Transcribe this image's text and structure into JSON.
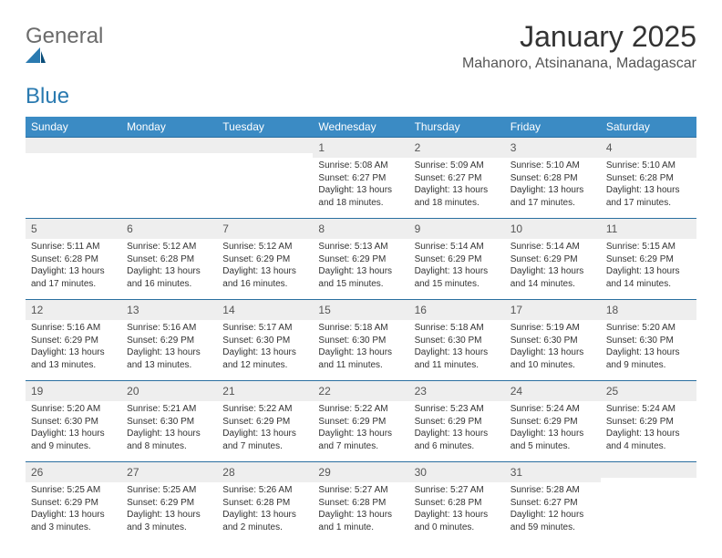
{
  "logo": {
    "word1": "General",
    "word2": "Blue"
  },
  "title": "January 2025",
  "location": "Mahanoro, Atsinanana, Madagascar",
  "header_bg": "#3b8bc4",
  "rule_color": "#2a6fa0",
  "stripe_bg": "#eeeeee",
  "days_of_week": [
    "Sunday",
    "Monday",
    "Tuesday",
    "Wednesday",
    "Thursday",
    "Friday",
    "Saturday"
  ],
  "weeks": [
    [
      null,
      null,
      null,
      {
        "n": "1",
        "sunrise": "5:08 AM",
        "sunset": "6:27 PM",
        "daylight": "13 hours and 18 minutes."
      },
      {
        "n": "2",
        "sunrise": "5:09 AM",
        "sunset": "6:27 PM",
        "daylight": "13 hours and 18 minutes."
      },
      {
        "n": "3",
        "sunrise": "5:10 AM",
        "sunset": "6:28 PM",
        "daylight": "13 hours and 17 minutes."
      },
      {
        "n": "4",
        "sunrise": "5:10 AM",
        "sunset": "6:28 PM",
        "daylight": "13 hours and 17 minutes."
      }
    ],
    [
      {
        "n": "5",
        "sunrise": "5:11 AM",
        "sunset": "6:28 PM",
        "daylight": "13 hours and 17 minutes."
      },
      {
        "n": "6",
        "sunrise": "5:12 AM",
        "sunset": "6:28 PM",
        "daylight": "13 hours and 16 minutes."
      },
      {
        "n": "7",
        "sunrise": "5:12 AM",
        "sunset": "6:29 PM",
        "daylight": "13 hours and 16 minutes."
      },
      {
        "n": "8",
        "sunrise": "5:13 AM",
        "sunset": "6:29 PM",
        "daylight": "13 hours and 15 minutes."
      },
      {
        "n": "9",
        "sunrise": "5:14 AM",
        "sunset": "6:29 PM",
        "daylight": "13 hours and 15 minutes."
      },
      {
        "n": "10",
        "sunrise": "5:14 AM",
        "sunset": "6:29 PM",
        "daylight": "13 hours and 14 minutes."
      },
      {
        "n": "11",
        "sunrise": "5:15 AM",
        "sunset": "6:29 PM",
        "daylight": "13 hours and 14 minutes."
      }
    ],
    [
      {
        "n": "12",
        "sunrise": "5:16 AM",
        "sunset": "6:29 PM",
        "daylight": "13 hours and 13 minutes."
      },
      {
        "n": "13",
        "sunrise": "5:16 AM",
        "sunset": "6:29 PM",
        "daylight": "13 hours and 13 minutes."
      },
      {
        "n": "14",
        "sunrise": "5:17 AM",
        "sunset": "6:30 PM",
        "daylight": "13 hours and 12 minutes."
      },
      {
        "n": "15",
        "sunrise": "5:18 AM",
        "sunset": "6:30 PM",
        "daylight": "13 hours and 11 minutes."
      },
      {
        "n": "16",
        "sunrise": "5:18 AM",
        "sunset": "6:30 PM",
        "daylight": "13 hours and 11 minutes."
      },
      {
        "n": "17",
        "sunrise": "5:19 AM",
        "sunset": "6:30 PM",
        "daylight": "13 hours and 10 minutes."
      },
      {
        "n": "18",
        "sunrise": "5:20 AM",
        "sunset": "6:30 PM",
        "daylight": "13 hours and 9 minutes."
      }
    ],
    [
      {
        "n": "19",
        "sunrise": "5:20 AM",
        "sunset": "6:30 PM",
        "daylight": "13 hours and 9 minutes."
      },
      {
        "n": "20",
        "sunrise": "5:21 AM",
        "sunset": "6:30 PM",
        "daylight": "13 hours and 8 minutes."
      },
      {
        "n": "21",
        "sunrise": "5:22 AM",
        "sunset": "6:29 PM",
        "daylight": "13 hours and 7 minutes."
      },
      {
        "n": "22",
        "sunrise": "5:22 AM",
        "sunset": "6:29 PM",
        "daylight": "13 hours and 7 minutes."
      },
      {
        "n": "23",
        "sunrise": "5:23 AM",
        "sunset": "6:29 PM",
        "daylight": "13 hours and 6 minutes."
      },
      {
        "n": "24",
        "sunrise": "5:24 AM",
        "sunset": "6:29 PM",
        "daylight": "13 hours and 5 minutes."
      },
      {
        "n": "25",
        "sunrise": "5:24 AM",
        "sunset": "6:29 PM",
        "daylight": "13 hours and 4 minutes."
      }
    ],
    [
      {
        "n": "26",
        "sunrise": "5:25 AM",
        "sunset": "6:29 PM",
        "daylight": "13 hours and 3 minutes."
      },
      {
        "n": "27",
        "sunrise": "5:25 AM",
        "sunset": "6:29 PM",
        "daylight": "13 hours and 3 minutes."
      },
      {
        "n": "28",
        "sunrise": "5:26 AM",
        "sunset": "6:28 PM",
        "daylight": "13 hours and 2 minutes."
      },
      {
        "n": "29",
        "sunrise": "5:27 AM",
        "sunset": "6:28 PM",
        "daylight": "13 hours and 1 minute."
      },
      {
        "n": "30",
        "sunrise": "5:27 AM",
        "sunset": "6:28 PM",
        "daylight": "13 hours and 0 minutes."
      },
      {
        "n": "31",
        "sunrise": "5:28 AM",
        "sunset": "6:27 PM",
        "daylight": "12 hours and 59 minutes."
      },
      null
    ]
  ],
  "labels": {
    "sunrise": "Sunrise: ",
    "sunset": "Sunset: ",
    "daylight": "Daylight: "
  }
}
